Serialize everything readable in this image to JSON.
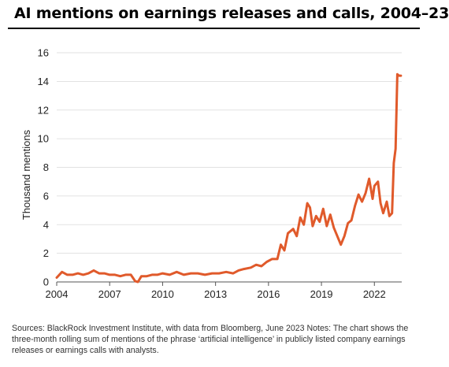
{
  "chart_data": {
    "type": "line",
    "title": "AI mentions on earnings releases and calls, 2004–23",
    "xlabel": "",
    "ylabel": "Thousand mentions",
    "ylim": [
      0,
      16
    ],
    "xlim": [
      2004,
      2023.55
    ],
    "yticks": [
      0,
      2,
      4,
      6,
      8,
      10,
      12,
      14,
      16
    ],
    "xticks": [
      2004,
      2007,
      2010,
      2013,
      2016,
      2019,
      2022
    ],
    "grid": "horizontal",
    "line_color": "#e05a2b",
    "series": [
      {
        "x": [
          2004.0,
          2004.3,
          2004.6,
          2004.9,
          2005.2,
          2005.5,
          2005.8,
          2006.1,
          2006.4,
          2006.7,
          2007.0,
          2007.3,
          2007.6,
          2007.9,
          2008.2,
          2008.45,
          2008.6,
          2008.8,
          2009.1,
          2009.4,
          2009.7,
          2010.0,
          2010.4,
          2010.8,
          2011.2,
          2011.6,
          2012.0,
          2012.4,
          2012.8,
          2013.2,
          2013.6,
          2014.0,
          2014.3,
          2014.6,
          2015.0,
          2015.3,
          2015.6,
          2015.9,
          2016.2,
          2016.5,
          2016.7,
          2016.9,
          2017.1,
          2017.4,
          2017.6,
          2017.8,
          2018.0,
          2018.2,
          2018.35,
          2018.5,
          2018.7,
          2018.9,
          2019.1,
          2019.3,
          2019.5,
          2019.7,
          2019.9,
          2020.1,
          2020.3,
          2020.5,
          2020.7,
          2020.9,
          2021.1,
          2021.3,
          2021.5,
          2021.7,
          2021.9,
          2022.0,
          2022.2,
          2022.35,
          2022.5,
          2022.7,
          2022.85,
          2023.0,
          2023.1,
          2023.2,
          2023.3,
          2023.4,
          2023.5
        ],
        "values": [
          0.3,
          0.7,
          0.5,
          0.5,
          0.6,
          0.5,
          0.6,
          0.8,
          0.6,
          0.6,
          0.5,
          0.5,
          0.4,
          0.5,
          0.5,
          0.05,
          0.0,
          0.4,
          0.4,
          0.5,
          0.5,
          0.6,
          0.5,
          0.7,
          0.5,
          0.6,
          0.6,
          0.5,
          0.6,
          0.6,
          0.7,
          0.6,
          0.8,
          0.9,
          1.0,
          1.2,
          1.1,
          1.4,
          1.6,
          1.6,
          2.6,
          2.2,
          3.4,
          3.7,
          3.2,
          4.5,
          4.0,
          5.5,
          5.2,
          3.9,
          4.6,
          4.2,
          5.1,
          3.9,
          4.7,
          3.8,
          3.2,
          2.6,
          3.2,
          4.1,
          4.3,
          5.3,
          6.1,
          5.6,
          6.2,
          7.2,
          5.8,
          6.7,
          7.0,
          5.5,
          4.8,
          5.6,
          4.6,
          4.8,
          8.3,
          9.3,
          14.5,
          14.4,
          14.4
        ]
      }
    ]
  },
  "notes": "Sources: BlackRock Investment Institute, with data from Bloomberg, June 2023 Notes: The chart shows the three-month rolling sum of mentions of the phrase ‘artificial intelligence’ in publicly listed company earnings releases or earnings calls with analysts."
}
